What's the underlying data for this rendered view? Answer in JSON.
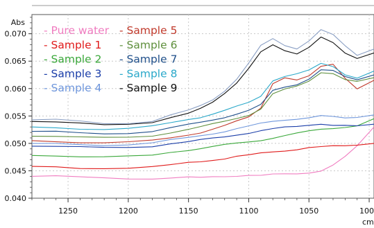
{
  "chart_data": {
    "type": "line",
    "ylabel": "Abs",
    "xlabel": "cm",
    "xlim": [
      1280,
      996
    ],
    "ylim": [
      0.04,
      0.0735
    ],
    "xticks": [
      1250,
      1200,
      1150,
      1100,
      1050,
      1000
    ],
    "yticks": [
      0.04,
      0.045,
      0.05,
      0.055,
      0.06,
      0.065,
      0.07
    ],
    "ytick_labels": [
      "0.040",
      "0.045",
      "0.050",
      "0.055",
      "0.060",
      "0.065",
      "0.070"
    ],
    "xtick_labels": [
      "1250",
      "1200",
      "1150",
      "1100",
      "1050",
      "1000"
    ],
    "grid": true,
    "legend_position": "top-left",
    "series": [
      {
        "name": "Pure water",
        "color": "#f07cc0",
        "x": [
          1280,
          1260,
          1240,
          1220,
          1200,
          1180,
          1165,
          1150,
          1140,
          1130,
          1120,
          1110,
          1100,
          1090,
          1080,
          1070,
          1060,
          1050,
          1040,
          1030,
          1020,
          1010,
          996
        ],
        "y": [
          0.044,
          0.044,
          0.0438,
          0.0437,
          0.0436,
          0.0436,
          0.0437,
          0.0438,
          0.0437,
          0.0439,
          0.044,
          0.0441,
          0.0442,
          0.0441,
          0.0443,
          0.0444,
          0.0445,
          0.0447,
          0.045,
          0.046,
          0.0475,
          0.0495,
          0.053
        ]
      },
      {
        "name": "Sample 1",
        "color": "#e01a1a",
        "x": [
          1280,
          1260,
          1240,
          1220,
          1200,
          1180,
          1165,
          1150,
          1140,
          1130,
          1120,
          1110,
          1100,
          1090,
          1080,
          1070,
          1060,
          1050,
          1040,
          1030,
          1020,
          1010,
          996
        ],
        "y": [
          0.0458,
          0.0457,
          0.0455,
          0.0455,
          0.0455,
          0.0457,
          0.046,
          0.0465,
          0.0467,
          0.047,
          0.0472,
          0.0476,
          0.0478,
          0.0482,
          0.0485,
          0.0487,
          0.0489,
          0.0492,
          0.0493,
          0.0495,
          0.0496,
          0.0498,
          0.05
        ]
      },
      {
        "name": "Sample 2",
        "color": "#3aa83a",
        "x": [
          1280,
          1260,
          1240,
          1220,
          1200,
          1180,
          1165,
          1150,
          1140,
          1130,
          1120,
          1110,
          1100,
          1090,
          1080,
          1070,
          1060,
          1050,
          1040,
          1030,
          1020,
          1010,
          996
        ],
        "y": [
          0.0478,
          0.0478,
          0.0476,
          0.0475,
          0.0476,
          0.0478,
          0.0484,
          0.0488,
          0.0491,
          0.0494,
          0.0497,
          0.05,
          0.0503,
          0.0506,
          0.051,
          0.0514,
          0.0518,
          0.0522,
          0.0526,
          0.0528,
          0.053,
          0.0532,
          0.0545
        ]
      },
      {
        "name": "Sample 3",
        "color": "#1a3da8",
        "x": [
          1280,
          1260,
          1240,
          1220,
          1200,
          1180,
          1165,
          1150,
          1140,
          1130,
          1120,
          1110,
          1100,
          1090,
          1080,
          1070,
          1060,
          1050,
          1040,
          1030,
          1020,
          1010,
          996
        ],
        "y": [
          0.0495,
          0.0494,
          0.0493,
          0.0492,
          0.0493,
          0.0495,
          0.05,
          0.0503,
          0.0506,
          0.0509,
          0.0512,
          0.0516,
          0.0519,
          0.0523,
          0.0526,
          0.0529,
          0.0531,
          0.0534,
          0.0536,
          0.0533,
          0.0532,
          0.0531,
          0.0535
        ]
      },
      {
        "name": "Sample 4",
        "color": "#6e96dc",
        "x": [
          1280,
          1260,
          1240,
          1220,
          1200,
          1180,
          1165,
          1150,
          1140,
          1130,
          1120,
          1110,
          1100,
          1090,
          1080,
          1070,
          1060,
          1050,
          1040,
          1030,
          1020,
          1010,
          996
        ],
        "y": [
          0.05,
          0.0499,
          0.0498,
          0.0497,
          0.0498,
          0.0501,
          0.0506,
          0.051,
          0.0514,
          0.0518,
          0.0522,
          0.0527,
          0.0531,
          0.0536,
          0.054,
          0.0543,
          0.0545,
          0.0547,
          0.055,
          0.0548,
          0.0546,
          0.0548,
          0.0552
        ]
      },
      {
        "name": "Sample 5",
        "color": "#c0392b",
        "x": [
          1280,
          1260,
          1240,
          1220,
          1200,
          1180,
          1165,
          1150,
          1140,
          1130,
          1120,
          1110,
          1100,
          1090,
          1080,
          1070,
          1060,
          1050,
          1040,
          1030,
          1020,
          1010,
          996
        ],
        "y": [
          0.0505,
          0.0504,
          0.0502,
          0.0501,
          0.0502,
          0.0505,
          0.051,
          0.0516,
          0.052,
          0.0526,
          0.0532,
          0.054,
          0.0548,
          0.0565,
          0.061,
          0.062,
          0.0615,
          0.0622,
          0.064,
          0.0645,
          0.062,
          0.06,
          0.0615
        ]
      },
      {
        "name": "Sample 6",
        "color": "#5e8f3c",
        "x": [
          1280,
          1260,
          1240,
          1220,
          1200,
          1180,
          1165,
          1150,
          1140,
          1130,
          1120,
          1110,
          1100,
          1090,
          1080,
          1070,
          1060,
          1050,
          1040,
          1030,
          1020,
          1010,
          996
        ],
        "y": [
          0.0513,
          0.0513,
          0.0511,
          0.051,
          0.0511,
          0.0514,
          0.052,
          0.0526,
          0.053,
          0.0535,
          0.054,
          0.0546,
          0.0552,
          0.0563,
          0.059,
          0.0598,
          0.0604,
          0.0614,
          0.063,
          0.0628,
          0.0616,
          0.0612,
          0.062
        ]
      },
      {
        "name": "Sample 7",
        "color": "#1f4f8a",
        "x": [
          1280,
          1260,
          1240,
          1220,
          1200,
          1180,
          1165,
          1150,
          1140,
          1130,
          1120,
          1110,
          1100,
          1090,
          1080,
          1070,
          1060,
          1050,
          1040,
          1030,
          1020,
          1010,
          996
        ],
        "y": [
          0.0522,
          0.0521,
          0.0519,
          0.0518,
          0.0519,
          0.0522,
          0.0528,
          0.0534,
          0.0538,
          0.0543,
          0.0548,
          0.0554,
          0.056,
          0.057,
          0.0596,
          0.0603,
          0.0608,
          0.0618,
          0.0634,
          0.0632,
          0.0621,
          0.0616,
          0.0625
        ]
      },
      {
        "name": "Sample 8",
        "color": "#29a8c9",
        "x": [
          1280,
          1260,
          1240,
          1220,
          1200,
          1180,
          1165,
          1150,
          1140,
          1130,
          1120,
          1110,
          1100,
          1090,
          1080,
          1070,
          1060,
          1050,
          1040,
          1030,
          1020,
          1010,
          996
        ],
        "y": [
          0.053,
          0.0529,
          0.0527,
          0.0526,
          0.0527,
          0.0531,
          0.0537,
          0.0544,
          0.0548,
          0.0554,
          0.056,
          0.0567,
          0.0574,
          0.0586,
          0.0615,
          0.0623,
          0.0627,
          0.0633,
          0.0645,
          0.064,
          0.0626,
          0.062,
          0.0632
        ]
      },
      {
        "name": "Sample 9",
        "color": "#111111",
        "x": [
          1280,
          1260,
          1240,
          1220,
          1200,
          1180,
          1165,
          1150,
          1140,
          1130,
          1120,
          1110,
          1100,
          1090,
          1080,
          1070,
          1060,
          1050,
          1040,
          1030,
          1020,
          1010,
          996
        ],
        "y": [
          0.054,
          0.054,
          0.0537,
          0.0533,
          0.0534,
          0.0538,
          0.0548,
          0.0556,
          0.0564,
          0.0574,
          0.059,
          0.061,
          0.0638,
          0.0668,
          0.068,
          0.0668,
          0.0662,
          0.0675,
          0.0695,
          0.0685,
          0.0665,
          0.0654,
          0.0665
        ]
      },
      {
        "name": "",
        "color": "#8a9fc4",
        "x": [
          1280,
          1260,
          1240,
          1220,
          1200,
          1180,
          1165,
          1150,
          1140,
          1130,
          1120,
          1110,
          1100,
          1090,
          1080,
          1070,
          1060,
          1050,
          1040,
          1030,
          1020,
          1010,
          996
        ],
        "y": [
          0.0543,
          0.0543,
          0.054,
          0.0536,
          0.0537,
          0.0541,
          0.0552,
          0.056,
          0.0568,
          0.0579,
          0.0596,
          0.0618,
          0.0647,
          0.0678,
          0.069,
          0.0678,
          0.0673,
          0.0688,
          0.0708,
          0.0698,
          0.0677,
          0.066,
          0.0672
        ]
      }
    ]
  }
}
